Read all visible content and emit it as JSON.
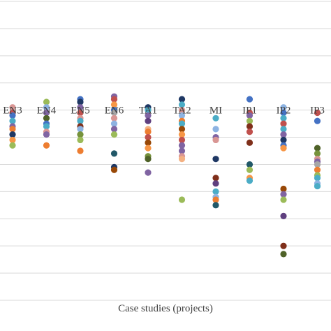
{
  "chart_data": {
    "type": "scatter",
    "xlabel": "Case studies (projects)",
    "ylabel": "",
    "title": "",
    "categories": [
      "EN3",
      "EN4",
      "EN5",
      "EN6",
      "TA1",
      "TA2",
      "MI",
      "IP1",
      "IP2",
      "IP3"
    ],
    "y_axis_position": 4,
    "ylim": [
      -3,
      2.5
    ],
    "gridlines": [
      2.5,
      2,
      1.5,
      1,
      0.5,
      0,
      -0.5,
      -1,
      -1.5,
      -2,
      -2.5,
      -3
    ],
    "grid": true,
    "legend": "none",
    "colors": {
      "blue": "#4472c4",
      "orange": "#ed7d31",
      "green": "#9bbb59",
      "purple": "#8064a2",
      "teal": "#4bacc6",
      "dkred": "#c0504d",
      "navy": "#1f3864",
      "maroon": "#7f2f1a",
      "dkgreen": "#4f6228",
      "brown": "#984807",
      "plum": "#5f3f7f",
      "lightblue": "#8db3e2",
      "salmon": "#f79646",
      "pink": "#d99694",
      "slate": "#215868",
      "sand": "#f4b183",
      "olive": "#76923c",
      "gray": "#a6a6a6"
    },
    "points": [
      {
        "c": 0,
        "y": 0.55,
        "color": "pink"
      },
      {
        "c": 0,
        "y": 0.45,
        "color": "dkred"
      },
      {
        "c": 0,
        "y": 0.4,
        "color": "blue"
      },
      {
        "c": 0,
        "y": 0.3,
        "color": "teal"
      },
      {
        "c": 0,
        "y": 0.2,
        "color": "purple"
      },
      {
        "c": 0,
        "y": 0.15,
        "color": "orange"
      },
      {
        "c": 0,
        "y": 0.05,
        "color": "navy"
      },
      {
        "c": 0,
        "y": -0.05,
        "color": "salmon"
      },
      {
        "c": 0,
        "y": -0.15,
        "color": "green"
      },
      {
        "c": 1,
        "y": 0.65,
        "color": "green"
      },
      {
        "c": 1,
        "y": 0.55,
        "color": "lightblue"
      },
      {
        "c": 1,
        "y": 0.45,
        "color": "purple"
      },
      {
        "c": 1,
        "y": 0.35,
        "color": "dkgreen"
      },
      {
        "c": 1,
        "y": 0.25,
        "color": "blue"
      },
      {
        "c": 1,
        "y": 0.2,
        "color": "teal"
      },
      {
        "c": 1,
        "y": 0.1,
        "color": "pink"
      },
      {
        "c": 1,
        "y": 0.05,
        "color": "purple"
      },
      {
        "c": 1,
        "y": -0.15,
        "color": "orange"
      },
      {
        "c": 2,
        "y": 0.7,
        "color": "blue"
      },
      {
        "c": 2,
        "y": 0.65,
        "color": "navy"
      },
      {
        "c": 2,
        "y": 0.55,
        "color": "purple"
      },
      {
        "c": 2,
        "y": 0.45,
        "color": "dkred"
      },
      {
        "c": 2,
        "y": 0.35,
        "color": "pink"
      },
      {
        "c": 2,
        "y": 0.3,
        "color": "teal"
      },
      {
        "c": 2,
        "y": 0.2,
        "color": "maroon"
      },
      {
        "c": 2,
        "y": 0.15,
        "color": "lightblue"
      },
      {
        "c": 2,
        "y": 0.05,
        "color": "olive"
      },
      {
        "c": 2,
        "y": -0.05,
        "color": "green"
      },
      {
        "c": 2,
        "y": -0.25,
        "color": "orange"
      },
      {
        "c": 3,
        "y": 0.75,
        "color": "purple"
      },
      {
        "c": 3,
        "y": 0.7,
        "color": "dkred"
      },
      {
        "c": 3,
        "y": 0.6,
        "color": "salmon"
      },
      {
        "c": 3,
        "y": 0.5,
        "color": "blue"
      },
      {
        "c": 3,
        "y": 0.45,
        "color": "gray"
      },
      {
        "c": 3,
        "y": 0.35,
        "color": "pink"
      },
      {
        "c": 3,
        "y": 0.25,
        "color": "lightblue"
      },
      {
        "c": 3,
        "y": 0.15,
        "color": "purple"
      },
      {
        "c": 3,
        "y": 0.05,
        "color": "green"
      },
      {
        "c": 3,
        "y": -0.3,
        "color": "slate"
      },
      {
        "c": 3,
        "y": -0.55,
        "color": "navy"
      },
      {
        "c": 3,
        "y": -0.6,
        "color": "brown"
      },
      {
        "c": 4,
        "y": 0.55,
        "color": "navy"
      },
      {
        "c": 4,
        "y": 0.5,
        "color": "teal"
      },
      {
        "c": 4,
        "y": 0.4,
        "color": "purple"
      },
      {
        "c": 4,
        "y": 0.3,
        "color": "plum"
      },
      {
        "c": 4,
        "y": 0.15,
        "color": "sand"
      },
      {
        "c": 4,
        "y": 0.1,
        "color": "orange"
      },
      {
        "c": 4,
        "y": 0.0,
        "color": "dkred"
      },
      {
        "c": 4,
        "y": -0.1,
        "color": "brown"
      },
      {
        "c": 4,
        "y": -0.2,
        "color": "salmon"
      },
      {
        "c": 4,
        "y": -0.35,
        "color": "olive"
      },
      {
        "c": 4,
        "y": -0.4,
        "color": "dkgreen"
      },
      {
        "c": 4,
        "y": -0.65,
        "color": "purple"
      },
      {
        "c": 5,
        "y": 0.7,
        "color": "navy"
      },
      {
        "c": 5,
        "y": 0.6,
        "color": "teal"
      },
      {
        "c": 5,
        "y": 0.5,
        "color": "pink"
      },
      {
        "c": 5,
        "y": 0.4,
        "color": "lightblue"
      },
      {
        "c": 5,
        "y": 0.3,
        "color": "orange"
      },
      {
        "c": 5,
        "y": 0.25,
        "color": "teal"
      },
      {
        "c": 5,
        "y": 0.15,
        "color": "brown"
      },
      {
        "c": 5,
        "y": 0.05,
        "color": "salmon"
      },
      {
        "c": 5,
        "y": -0.05,
        "color": "dkred"
      },
      {
        "c": 5,
        "y": -0.15,
        "color": "purple"
      },
      {
        "c": 5,
        "y": -0.25,
        "color": "purple"
      },
      {
        "c": 5,
        "y": -0.35,
        "color": "pink"
      },
      {
        "c": 5,
        "y": -0.4,
        "color": "sand"
      },
      {
        "c": 5,
        "y": -1.15,
        "color": "green"
      },
      {
        "c": 6,
        "y": 0.35,
        "color": "teal"
      },
      {
        "c": 6,
        "y": 0.15,
        "color": "lightblue"
      },
      {
        "c": 6,
        "y": 0.0,
        "color": "purple"
      },
      {
        "c": 6,
        "y": -0.05,
        "color": "pink"
      },
      {
        "c": 6,
        "y": -0.4,
        "color": "navy"
      },
      {
        "c": 6,
        "y": -0.75,
        "color": "maroon"
      },
      {
        "c": 6,
        "y": -0.85,
        "color": "plum"
      },
      {
        "c": 6,
        "y": -1.0,
        "color": "teal"
      },
      {
        "c": 6,
        "y": -1.1,
        "color": "lightblue"
      },
      {
        "c": 6,
        "y": -1.15,
        "color": "orange"
      },
      {
        "c": 6,
        "y": -1.25,
        "color": "slate"
      },
      {
        "c": 7,
        "y": 0.7,
        "color": "blue"
      },
      {
        "c": 7,
        "y": 0.45,
        "color": "dkred"
      },
      {
        "c": 7,
        "y": 0.4,
        "color": "purple"
      },
      {
        "c": 7,
        "y": 0.3,
        "color": "green"
      },
      {
        "c": 7,
        "y": 0.2,
        "color": "maroon"
      },
      {
        "c": 7,
        "y": 0.1,
        "color": "dkred"
      },
      {
        "c": 7,
        "y": -0.1,
        "color": "maroon"
      },
      {
        "c": 7,
        "y": -0.5,
        "color": "slate"
      },
      {
        "c": 7,
        "y": -0.6,
        "color": "green"
      },
      {
        "c": 7,
        "y": -0.75,
        "color": "salmon"
      },
      {
        "c": 7,
        "y": -0.8,
        "color": "teal"
      },
      {
        "c": 8,
        "y": 0.55,
        "color": "lightblue"
      },
      {
        "c": 8,
        "y": 0.45,
        "color": "blue"
      },
      {
        "c": 8,
        "y": 0.35,
        "color": "teal"
      },
      {
        "c": 8,
        "y": 0.25,
        "color": "dkred"
      },
      {
        "c": 8,
        "y": 0.15,
        "color": "teal"
      },
      {
        "c": 8,
        "y": 0.05,
        "color": "purple"
      },
      {
        "c": 8,
        "y": -0.05,
        "color": "navy"
      },
      {
        "c": 8,
        "y": -0.15,
        "color": "blue"
      },
      {
        "c": 8,
        "y": -0.2,
        "color": "salmon"
      },
      {
        "c": 8,
        "y": -0.95,
        "color": "brown"
      },
      {
        "c": 8,
        "y": -1.05,
        "color": "purple"
      },
      {
        "c": 8,
        "y": -1.15,
        "color": "green"
      },
      {
        "c": 8,
        "y": -1.45,
        "color": "plum"
      },
      {
        "c": 8,
        "y": -2.0,
        "color": "maroon"
      },
      {
        "c": 8,
        "y": -2.15,
        "color": "dkgreen"
      },
      {
        "c": 9,
        "y": 0.45,
        "color": "dkred"
      },
      {
        "c": 9,
        "y": 0.3,
        "color": "blue"
      },
      {
        "c": 9,
        "y": -0.2,
        "color": "dkgreen"
      },
      {
        "c": 9,
        "y": -0.3,
        "color": "olive"
      },
      {
        "c": 9,
        "y": -0.4,
        "color": "pink"
      },
      {
        "c": 9,
        "y": -0.45,
        "color": "purple"
      },
      {
        "c": 9,
        "y": -0.5,
        "color": "gray"
      },
      {
        "c": 9,
        "y": -0.6,
        "color": "orange"
      },
      {
        "c": 9,
        "y": -0.7,
        "color": "green"
      },
      {
        "c": 9,
        "y": -0.75,
        "color": "teal"
      },
      {
        "c": 9,
        "y": -0.85,
        "color": "lightblue"
      },
      {
        "c": 9,
        "y": -0.9,
        "color": "teal"
      }
    ]
  }
}
